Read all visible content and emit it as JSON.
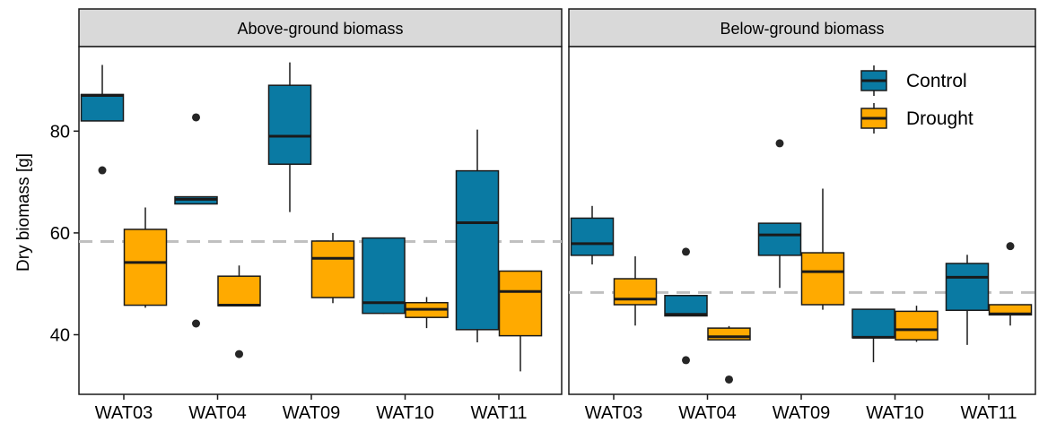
{
  "chart_data": {
    "type": "boxplot",
    "ylabel": "Dry biomass [g]",
    "yticks": [
      40,
      60,
      80
    ],
    "ylim": [
      29,
      100
    ],
    "categories": [
      "WAT03",
      "WAT04",
      "WAT09",
      "WAT10",
      "WAT11"
    ],
    "legend": {
      "position": "top-right",
      "entries": [
        {
          "name": "Control",
          "color": "#0a7aa3"
        },
        {
          "name": "Drought",
          "color": "#ffaa00"
        }
      ]
    },
    "reference_line_color": "#c0c0c0",
    "panels": [
      {
        "title": "Above-ground biomass",
        "reference_line": 58.3,
        "groups": [
          {
            "category": "WAT03",
            "series": "Control",
            "whisker_low": 82,
            "q1": 82,
            "median": 87,
            "q3": 87.2,
            "whisker_high": 93,
            "outliers": [
              72.3
            ]
          },
          {
            "category": "WAT03",
            "series": "Drought",
            "whisker_low": 45.3,
            "q1": 45.8,
            "median": 54.2,
            "q3": 60.7,
            "whisker_high": 65,
            "outliers": []
          },
          {
            "category": "WAT04",
            "series": "Control",
            "whisker_low": 65.7,
            "q1": 65.7,
            "median": 66.6,
            "q3": 67.1,
            "whisker_high": 67.1,
            "outliers": [
              82.7,
              42.2
            ]
          },
          {
            "category": "WAT04",
            "series": "Drought",
            "whisker_low": 45.7,
            "q1": 45.7,
            "median": 45.8,
            "q3": 51.5,
            "whisker_high": 53.6,
            "outliers": [
              36.2
            ]
          },
          {
            "category": "WAT09",
            "series": "Control",
            "whisker_low": 64.1,
            "q1": 73.5,
            "median": 79,
            "q3": 89,
            "whisker_high": 93.5,
            "outliers": []
          },
          {
            "category": "WAT09",
            "series": "Drought",
            "whisker_low": 46.2,
            "q1": 47.3,
            "median": 55,
            "q3": 58.4,
            "whisker_high": 60,
            "outliers": []
          },
          {
            "category": "WAT10",
            "series": "Control",
            "whisker_low": 44.1,
            "q1": 44.2,
            "median": 46.3,
            "q3": 59,
            "whisker_high": 59,
            "outliers": []
          },
          {
            "category": "WAT10",
            "series": "Drought",
            "whisker_low": 41.3,
            "q1": 43.4,
            "median": 45,
            "q3": 46.3,
            "whisker_high": 47.4,
            "outliers": []
          },
          {
            "category": "WAT11",
            "series": "Control",
            "whisker_low": 38.5,
            "q1": 41,
            "median": 62,
            "q3": 72.2,
            "whisker_high": 80.3,
            "outliers": []
          },
          {
            "category": "WAT11",
            "series": "Drought",
            "whisker_low": 32.8,
            "q1": 39.8,
            "median": 48.5,
            "q3": 52.5,
            "whisker_high": 52.5,
            "outliers": []
          }
        ]
      },
      {
        "title": "Below-ground biomass",
        "reference_line": 48.3,
        "groups": [
          {
            "category": "WAT03",
            "series": "Control",
            "whisker_low": 53.8,
            "q1": 55.6,
            "median": 57.9,
            "q3": 62.9,
            "whisker_high": 65.3,
            "outliers": []
          },
          {
            "category": "WAT03",
            "series": "Drought",
            "whisker_low": 41.8,
            "q1": 45.9,
            "median": 47,
            "q3": 51,
            "whisker_high": 55.4,
            "outliers": []
          },
          {
            "category": "WAT04",
            "series": "Control",
            "whisker_low": 43.7,
            "q1": 43.7,
            "median": 44,
            "q3": 47.7,
            "whisker_high": 47.7,
            "outliers": [
              56.3,
              35
            ]
          },
          {
            "category": "WAT04",
            "series": "Drought",
            "whisker_low": 39,
            "q1": 39,
            "median": 39.6,
            "q3": 41.3,
            "whisker_high": 41.7,
            "outliers": [
              31.2
            ]
          },
          {
            "category": "WAT09",
            "series": "Control",
            "whisker_low": 49.2,
            "q1": 55.6,
            "median": 59.6,
            "q3": 61.9,
            "whisker_high": 61.9,
            "outliers": [
              77.6
            ]
          },
          {
            "category": "WAT09",
            "series": "Drought",
            "whisker_low": 44.9,
            "q1": 45.9,
            "median": 52.4,
            "q3": 56.1,
            "whisker_high": 68.7,
            "outliers": []
          },
          {
            "category": "WAT10",
            "series": "Control",
            "whisker_low": 34.6,
            "q1": 39.4,
            "median": 39.5,
            "q3": 45,
            "whisker_high": 45,
            "outliers": []
          },
          {
            "category": "WAT10",
            "series": "Drought",
            "whisker_low": 38.6,
            "q1": 39,
            "median": 41,
            "q3": 44.6,
            "whisker_high": 45.7,
            "outliers": []
          },
          {
            "category": "WAT11",
            "series": "Control",
            "whisker_low": 38,
            "q1": 44.8,
            "median": 51.3,
            "q3": 54,
            "whisker_high": 55.7,
            "outliers": []
          },
          {
            "category": "WAT11",
            "series": "Drought",
            "whisker_low": 41.8,
            "q1": 43.9,
            "median": 44.1,
            "q3": 45.9,
            "whisker_high": 45.9,
            "outliers": [
              57.4
            ]
          }
        ]
      }
    ]
  }
}
